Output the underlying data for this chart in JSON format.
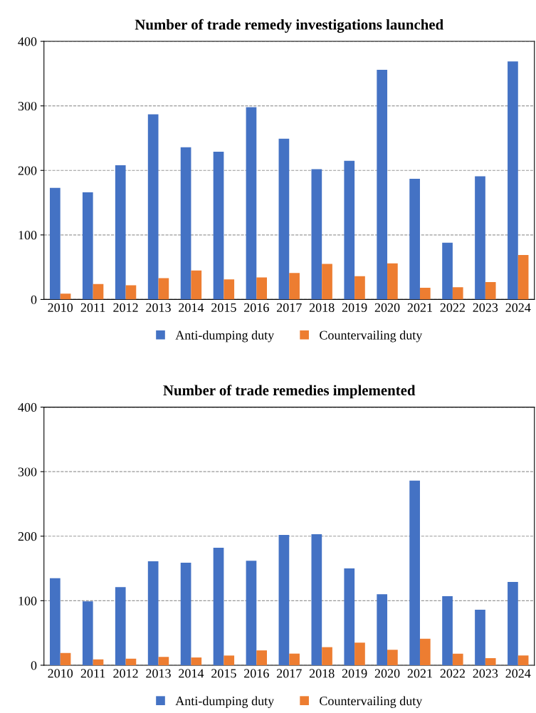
{
  "chart_data": [
    {
      "type": "bar",
      "title": "Number of trade remedy investigations launched",
      "categories": [
        "2010",
        "2011",
        "2012",
        "2013",
        "2014",
        "2015",
        "2016",
        "2017",
        "2018",
        "2019",
        "2020",
        "2021",
        "2022",
        "2023",
        "2024"
      ],
      "series": [
        {
          "name": "Anti-dumping duty",
          "color": "#4472c4",
          "values": [
            173,
            166,
            208,
            287,
            236,
            229,
            298,
            249,
            202,
            215,
            356,
            187,
            88,
            191,
            369
          ]
        },
        {
          "name": "Countervailing duty",
          "color": "#ed7d31",
          "values": [
            9,
            24,
            22,
            33,
            45,
            31,
            34,
            41,
            55,
            36,
            56,
            18,
            19,
            27,
            69
          ]
        }
      ],
      "ylim": [
        0,
        400
      ],
      "yticks": [
        0,
        100,
        200,
        300,
        400
      ],
      "grid": "y",
      "legend": "bottom"
    },
    {
      "type": "bar",
      "title": "Number of trade remedies implemented",
      "categories": [
        "2010",
        "2011",
        "2012",
        "2013",
        "2014",
        "2015",
        "2016",
        "2017",
        "2018",
        "2019",
        "2020",
        "2021",
        "2022",
        "2023",
        "2024"
      ],
      "series": [
        {
          "name": "Anti-dumping duty",
          "color": "#4472c4",
          "values": [
            135,
            99,
            121,
            161,
            159,
            182,
            162,
            202,
            203,
            150,
            110,
            286,
            107,
            86,
            129
          ]
        },
        {
          "name": "Countervailing duty",
          "color": "#ed7d31",
          "values": [
            19,
            9,
            10,
            13,
            12,
            15,
            23,
            18,
            28,
            35,
            24,
            41,
            18,
            11,
            15
          ]
        }
      ],
      "ylim": [
        0,
        400
      ],
      "yticks": [
        0,
        100,
        200,
        300,
        400
      ],
      "grid": "y",
      "legend": "bottom"
    }
  ]
}
